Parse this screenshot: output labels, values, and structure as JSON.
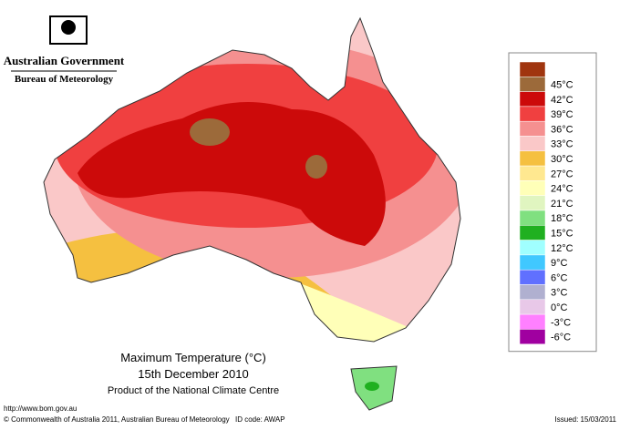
{
  "header": {
    "agency": "Australian Government",
    "bureau": "Bureau of Meteorology"
  },
  "map": {
    "title": "Maximum Temperature (°C)",
    "date": "15th December 2010",
    "product": "Product of the National Climate Centre"
  },
  "legend": {
    "labels": [
      null,
      "45°C",
      "42°C",
      "39°C",
      "36°C",
      "33°C",
      "30°C",
      "27°C",
      "24°C",
      "21°C",
      "18°C",
      "15°C",
      "12°C",
      "9°C",
      "6°C",
      "3°C",
      "0°C",
      "-3°C",
      "-6°C"
    ],
    "colors": [
      "#a0350f",
      "#9c6a3a",
      "#cc0a0a",
      "#f04040",
      "#f59090",
      "#fac8c8",
      "#f5c040",
      "#ffe890",
      "#ffffb8",
      "#e0f5c0",
      "#80e080",
      "#20b020",
      "#a0ffff",
      "#40c8ff",
      "#6070ff",
      "#b0b0d0",
      "#e8c8e8",
      "#ff80ff",
      "#a000a0"
    ]
  },
  "footer": {
    "url": "http://www.bom.gov.au",
    "copyright": "© Commonwealth of Australia 2011, Australian Bureau of Meteorology",
    "id_code": "ID code: AWAP",
    "issued": "Issued: 15/03/2011"
  }
}
